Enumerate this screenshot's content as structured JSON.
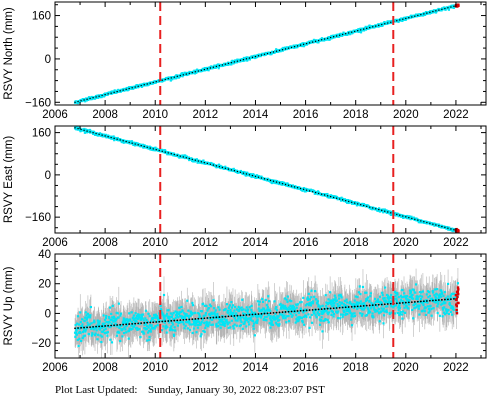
{
  "footer": {
    "label": "Plot Last Updated:",
    "value": "Sunday, January 30, 2022 08:23:07 PST"
  },
  "colors": {
    "scatter": "#00e5f5",
    "errorbar": "#b4b4b4",
    "trend": "#000000",
    "event_line": "#e82020",
    "recent_points": "#dd0000"
  },
  "chart_data": [
    {
      "type": "scatter",
      "station": "RSVY",
      "ylabel": "RSVY North (mm)",
      "xlim": [
        2006,
        2023.2
      ],
      "ylim": [
        -170,
        210
      ],
      "xticks": [
        2006,
        2008,
        2010,
        2012,
        2014,
        2016,
        2018,
        2020,
        2022
      ],
      "yticks": [
        -160,
        0,
        160
      ],
      "ytick_labels": [
        "−160",
        "0",
        "160"
      ],
      "x_start": 2006.8,
      "x_end": 2022.08,
      "series": [
        {
          "x": [
            2006.8,
            2022.08
          ],
          "y": [
            -160,
            198
          ]
        }
      ],
      "noise_sd": 2.5,
      "errorbar": 3,
      "event_lines": [
        2010.2,
        2019.5
      ]
    },
    {
      "type": "scatter",
      "station": "RSVY",
      "ylabel": "RSVY East (mm)",
      "xlim": [
        2006,
        2023.2
      ],
      "ylim": [
        -220,
        185
      ],
      "xticks": [
        2006,
        2008,
        2010,
        2012,
        2014,
        2016,
        2018,
        2020,
        2022
      ],
      "yticks": [
        -160,
        0,
        160
      ],
      "ytick_labels": [
        "−160",
        "0",
        "160"
      ],
      "x_start": 2006.8,
      "x_end": 2022.08,
      "series": [
        {
          "x": [
            2006.8,
            2022.08
          ],
          "y": [
            178,
            -212
          ]
        }
      ],
      "noise_sd": 2.5,
      "errorbar": 3,
      "event_lines": [
        2010.2,
        2019.5
      ]
    },
    {
      "type": "scatter",
      "station": "RSVY",
      "ylabel": "RSVY Up (mm)",
      "xlim": [
        2006,
        2023.2
      ],
      "ylim": [
        -30,
        40
      ],
      "xticks": [
        2006,
        2008,
        2010,
        2012,
        2014,
        2016,
        2018,
        2020,
        2022
      ],
      "yticks": [
        -20,
        0,
        20,
        40
      ],
      "ytick_labels": [
        "−20",
        "0",
        "20",
        "40"
      ],
      "x_start": 2006.8,
      "x_end": 2022.08,
      "series": [
        {
          "x": [
            2006.8,
            2022.08
          ],
          "y": [
            -10,
            10
          ]
        }
      ],
      "noise_sd": 4.5,
      "errorbar": 9,
      "event_lines": [
        2010.2,
        2019.5
      ]
    }
  ]
}
